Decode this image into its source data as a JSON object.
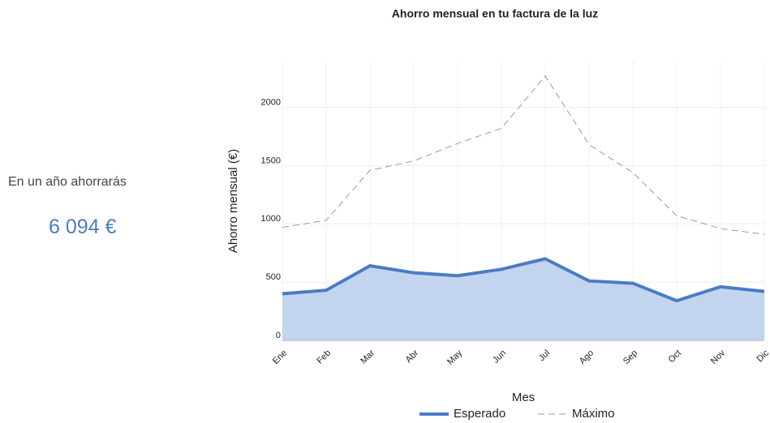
{
  "summary": {
    "label": "En un año ahorrarás",
    "amount": "6 094 €"
  },
  "chart_data": {
    "type": "line",
    "title": "Ahorro mensual en tu factura de la luz",
    "xlabel": "Mes",
    "ylabel": "Ahorro mensual (€)",
    "categories": [
      "Ene",
      "Feb",
      "Mar",
      "Abr",
      "May",
      "Jun",
      "Jul",
      "Ago",
      "Sep",
      "Oct",
      "Nov",
      "Dic"
    ],
    "series": [
      {
        "name": "Esperado",
        "color": "#4a7cc4",
        "fill": "#bcd0ec",
        "dashed": false,
        "values": [
          400,
          430,
          640,
          580,
          555,
          610,
          700,
          510,
          490,
          340,
          460,
          420
        ]
      },
      {
        "name": "Máximo",
        "color": "#9a9a9a",
        "dashed": true,
        "values": [
          970,
          1030,
          1460,
          1540,
          1690,
          1820,
          2270,
          1680,
          1440,
          1070,
          960,
          910
        ]
      }
    ],
    "ylim": [
      0,
      2400
    ],
    "yticks": [
      0,
      500,
      1000,
      1500,
      2000
    ],
    "grid": true,
    "legend": "bottom"
  }
}
